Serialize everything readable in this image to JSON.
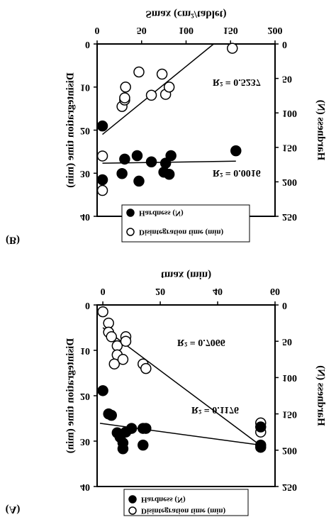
{
  "chart_data": [
    {
      "type": "scatter",
      "panel": "(A)",
      "x_label": "tmax (min)",
      "y_label": "Disintegration time (min)",
      "y2_label": "Hardness (N)",
      "xlim": [
        -2,
        60
      ],
      "xticks": [
        0,
        20,
        40,
        60
      ],
      "ylim": [
        0,
        40
      ],
      "yticks": [
        0,
        10,
        20,
        30,
        40
      ],
      "y2lim": [
        0,
        250
      ],
      "y2ticks": [
        0,
        50,
        100,
        150,
        200,
        250
      ],
      "series": [
        {
          "name": "Disintegration time (min)",
          "color": "#ffffff",
          "axis": "y",
          "x": [
            0,
            2,
            2,
            3,
            5,
            5,
            8,
            8,
            4,
            7,
            14,
            15,
            55,
            55
          ],
          "values": [
            1.5,
            4,
            6,
            7,
            9,
            11,
            7,
            8,
            13,
            12,
            13,
            14,
            26,
            28
          ]
        },
        {
          "name": "Hardness (N)",
          "color": "#000000",
          "axis": "y2",
          "x": [
            0,
            2,
            3,
            5,
            6,
            7,
            7,
            8,
            10,
            14,
            14,
            15,
            55,
            55,
            55
          ],
          "values": [
            118,
            150,
            152,
            176,
            182,
            190,
            198,
            175,
            170,
            170,
            193,
            170,
            168,
            196,
            193
          ]
        }
      ],
      "trendlines": [
        {
          "axis": "y",
          "x": [
            0,
            55
          ],
          "values": [
            5,
            31
          ],
          "label": "R² = 0.7066"
        },
        {
          "axis": "y2",
          "x": [
            -1,
            55
          ],
          "values": [
            163,
            193
          ],
          "label": "R² = 0.1176"
        }
      ]
    },
    {
      "type": "scatter",
      "panel": "(B)",
      "x_label": "Smax (cm²/tablet)",
      "y_label": "Disintegration time (min)",
      "y2_label": "Hardness (N)",
      "xlim": [
        0,
        200
      ],
      "xticks": [
        0,
        50,
        100,
        150,
        200
      ],
      "ylim": [
        0,
        40
      ],
      "yticks": [
        0,
        10,
        20,
        30,
        40
      ],
      "y2lim": [
        0,
        250
      ],
      "y2ticks": [
        0,
        50,
        100,
        150,
        200,
        250
      ],
      "series": [
        {
          "name": "Disintegration time (min)",
          "color": "#ffffff",
          "axis": "y",
          "x": [
            6,
            6,
            28,
            31,
            32,
            31,
            47,
            61,
            73,
            77,
            81,
            152
          ],
          "values": [
            34,
            26,
            14.5,
            13,
            10,
            12.5,
            6.5,
            11.9,
            7,
            11.7,
            10,
            1
          ]
        },
        {
          "name": "Hardness (N)",
          "color": "#000000",
          "axis": "y2",
          "x": [
            6,
            6,
            28,
            31,
            45,
            47,
            61,
            75,
            77,
            81,
            156,
            83
          ],
          "values": [
            119,
            197,
            188,
            167,
            162,
            199,
            171,
            186,
            173,
            189,
            155,
            162
          ]
        }
      ],
      "trendlines": [
        {
          "axis": "y",
          "x": [
            6,
            131
          ],
          "values": [
            21,
            0
          ],
          "label": "R² = 0.5237"
        },
        {
          "axis": "y2",
          "x": [
            6,
            156
          ],
          "values": [
            173,
            170
          ],
          "label": "R² = 0.0016"
        }
      ]
    }
  ]
}
